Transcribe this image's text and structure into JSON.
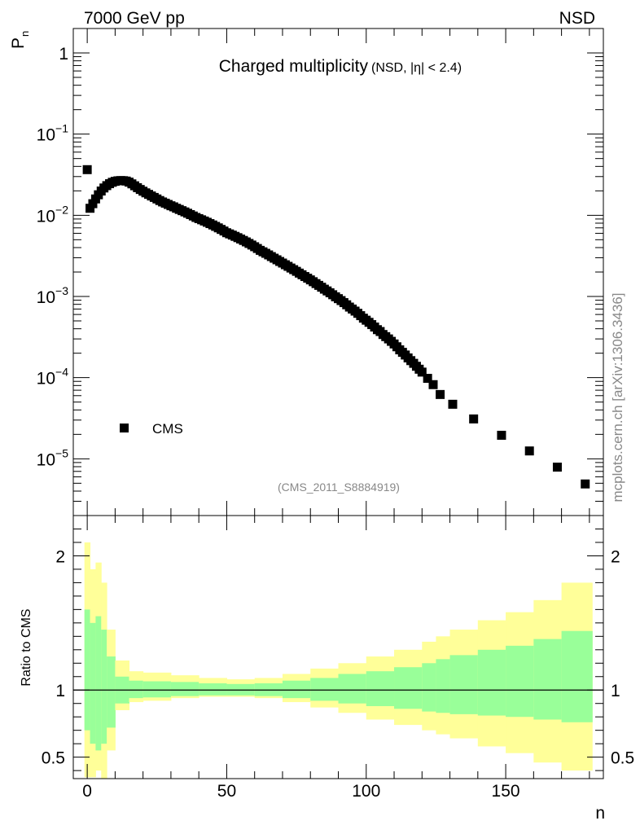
{
  "header": {
    "left": "7000 GeV pp",
    "right": "NSD"
  },
  "side_label": "mcplots.cern.ch [arXiv:1306.3436]",
  "colors": {
    "marker": "#000000",
    "band_outer": "#ffff99",
    "band_inner": "#99ff99",
    "line": "#000000"
  },
  "chart_data": [
    {
      "type": "scatter",
      "title": "Charged multiplicity",
      "subtitle": "(NSD, |η| < 2.4)",
      "ylabel": "P",
      "ylabel_sub": "n",
      "yscale": "log",
      "xlim": [
        -5,
        185
      ],
      "ylim": [
        2e-06,
        2
      ],
      "watermark": "(CMS_2011_S8884919)",
      "y_tick_labels": [
        {
          "base": "1",
          "exp": "",
          "value": 1
        },
        {
          "base": "10",
          "exp": "−1",
          "value": 0.1
        },
        {
          "base": "10",
          "exp": "−2",
          "value": 0.01
        },
        {
          "base": "10",
          "exp": "−3",
          "value": 0.001
        },
        {
          "base": "10",
          "exp": "−4",
          "value": 0.0001
        },
        {
          "base": "10",
          "exp": "−5",
          "value": 1e-05
        }
      ],
      "legend": {
        "label": "CMS",
        "position": "bottom-left"
      },
      "series": [
        {
          "name": "CMS",
          "x": [
            0,
            1,
            2,
            3,
            4,
            5,
            6,
            7,
            8,
            9,
            10,
            11,
            12,
            13,
            14,
            15,
            16,
            17,
            18,
            19,
            20,
            21,
            22,
            23,
            24,
            25,
            26,
            27,
            28,
            29,
            30,
            31,
            32,
            33,
            34,
            35,
            36,
            37,
            38,
            39,
            40,
            41,
            42,
            43,
            44,
            45,
            46,
            47,
            48,
            49,
            50,
            51,
            52,
            53,
            54,
            55,
            56,
            57,
            58,
            59,
            60,
            61,
            62,
            63,
            64,
            65,
            66,
            67,
            68,
            69,
            70,
            71,
            72,
            73,
            74,
            75,
            76,
            77,
            78,
            79,
            80,
            81,
            82,
            83,
            84,
            85,
            86,
            87,
            88,
            89,
            90,
            91,
            92,
            93,
            94,
            95,
            96,
            97,
            98,
            99,
            100,
            101,
            102,
            103,
            104,
            105,
            106,
            107,
            108,
            109,
            110,
            111,
            112,
            113,
            114,
            115,
            116,
            117,
            118,
            119,
            120,
            122,
            124,
            126.5,
            131,
            138.5,
            148.5,
            158.5,
            168.5,
            178.5
          ],
          "y": [
            0.0365,
            0.0122,
            0.0139,
            0.0159,
            0.0179,
            0.0199,
            0.0217,
            0.0232,
            0.0245,
            0.0255,
            0.0262,
            0.0266,
            0.0268,
            0.0267,
            0.0264,
            0.0256,
            0.0244,
            0.0231,
            0.0219,
            0.0208,
            0.0198,
            0.0189,
            0.0181,
            0.0173,
            0.0166,
            0.0159,
            0.0152,
            0.0146,
            0.0141,
            0.0136,
            0.0131,
            0.0127,
            0.0122,
            0.0118,
            0.0114,
            0.011,
            0.0106,
            0.0102,
            0.0098,
            0.0094,
            0.0091,
            0.0088,
            0.0085,
            0.0082,
            0.0079,
            0.0076,
            0.0073,
            0.007,
            0.0067,
            0.0064,
            0.0061,
            0.0059,
            0.0057,
            0.0055,
            0.0053,
            0.0051,
            0.0049,
            0.0047,
            0.0045,
            0.0043,
            0.0041,
            0.0039,
            0.0037,
            0.00355,
            0.0034,
            0.00325,
            0.0031,
            0.00296,
            0.00283,
            0.0027,
            0.00258,
            0.00246,
            0.00235,
            0.00224,
            0.00214,
            0.00204,
            0.00194,
            0.00185,
            0.00176,
            0.00168,
            0.0016,
            0.00152,
            0.00144,
            0.00137,
            0.0013,
            0.00123,
            0.00117,
            0.00111,
            0.00105,
            0.00099,
            0.00094,
            0.00089,
            0.00084,
            0.00079,
            0.00074,
            0.0007,
            0.00066,
            0.00062,
            0.00058,
            0.00054,
            0.00051,
            0.00048,
            0.00045,
            0.00042,
            0.00039,
            0.00037,
            0.00034,
            0.00032,
            0.0003,
            0.00028,
            0.00026,
            0.00024,
            0.00022,
            0.000205,
            0.00019,
            0.000175,
            0.000162,
            0.00015,
            0.000138,
            0.000127,
            0.000117,
            9.8e-05,
            8.2e-05,
            6.2e-05,
            4.7e-05,
            3.1e-05,
            1.95e-05,
            1.25e-05,
            7.9e-06,
            4.9e-06
          ]
        }
      ]
    },
    {
      "type": "area",
      "ylabel": "Ratio to CMS",
      "xlabel": "n",
      "xlim": [
        -5,
        185
      ],
      "ylim": [
        0.34,
        2.3
      ],
      "x_ticks": [
        0,
        50,
        100,
        150
      ],
      "y_ticks": [
        0.5,
        1,
        2
      ],
      "reference_line": 1,
      "bins": [
        -1,
        1,
        3,
        5,
        7,
        10,
        15,
        20,
        30,
        40,
        50,
        60,
        70,
        80,
        90,
        100,
        110,
        120,
        125,
        130,
        140,
        150,
        160,
        170,
        181
      ],
      "band_outer_high": [
        2.1,
        1.9,
        1.95,
        1.8,
        1.45,
        1.22,
        1.14,
        1.13,
        1.11,
        1.09,
        1.08,
        1.09,
        1.12,
        1.16,
        1.2,
        1.25,
        1.3,
        1.36,
        1.4,
        1.45,
        1.52,
        1.58,
        1.67,
        1.8
      ],
      "band_outer_low": [
        0.35,
        0.35,
        0.4,
        0.34,
        0.55,
        0.85,
        0.91,
        0.92,
        0.94,
        0.95,
        0.95,
        0.94,
        0.91,
        0.87,
        0.83,
        0.78,
        0.74,
        0.7,
        0.67,
        0.64,
        0.58,
        0.53,
        0.46,
        0.4
      ],
      "band_inner_high": [
        1.6,
        1.5,
        1.55,
        1.45,
        1.25,
        1.1,
        1.07,
        1.065,
        1.06,
        1.05,
        1.045,
        1.05,
        1.07,
        1.09,
        1.12,
        1.14,
        1.17,
        1.2,
        1.23,
        1.26,
        1.3,
        1.33,
        1.38,
        1.44
      ],
      "band_inner_low": [
        0.7,
        0.6,
        0.55,
        0.6,
        0.72,
        0.9,
        0.94,
        0.945,
        0.955,
        0.96,
        0.96,
        0.955,
        0.94,
        0.92,
        0.9,
        0.88,
        0.86,
        0.84,
        0.83,
        0.82,
        0.81,
        0.8,
        0.78,
        0.76
      ]
    }
  ]
}
